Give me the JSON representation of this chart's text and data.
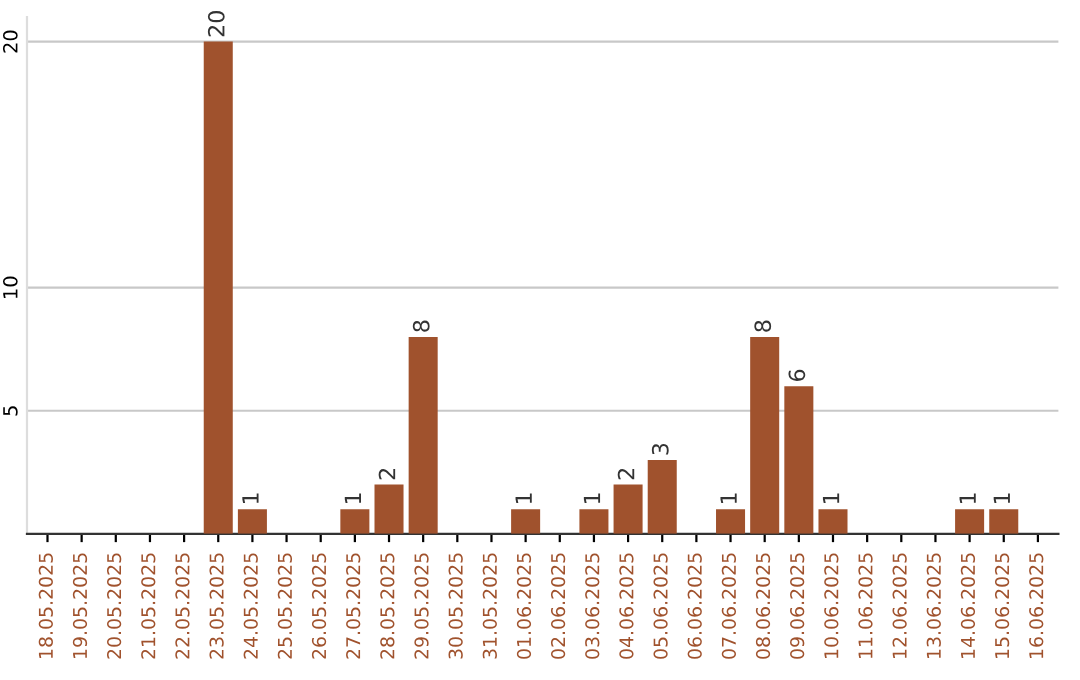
{
  "chart_data": {
    "type": "bar",
    "categories": [
      "18.05.2025",
      "19.05.2025",
      "20.05.2025",
      "21.05.2025",
      "22.05.2025",
      "23.05.2025",
      "24.05.2025",
      "25.05.2025",
      "26.05.2025",
      "27.05.2025",
      "28.05.2025",
      "29.05.2025",
      "30.05.2025",
      "31.05.2025",
      "01.06.2025",
      "02.06.2025",
      "03.06.2025",
      "04.06.2025",
      "05.06.2025",
      "06.06.2025",
      "07.06.2025",
      "08.06.2025",
      "09.06.2025",
      "10.06.2025",
      "11.06.2025",
      "12.06.2025",
      "13.06.2025",
      "14.06.2025",
      "15.06.2025",
      "16.06.2025"
    ],
    "values": [
      0,
      0,
      0,
      0,
      0,
      20,
      1,
      0,
      0,
      1,
      2,
      8,
      0,
      0,
      1,
      0,
      1,
      2,
      3,
      0,
      1,
      8,
      6,
      1,
      0,
      0,
      0,
      1,
      1,
      0
    ],
    "value_labels": [
      null,
      null,
      null,
      null,
      null,
      "20",
      "1",
      null,
      null,
      "1",
      "2",
      "8",
      null,
      null,
      "1",
      null,
      "1",
      "2",
      "3",
      null,
      "1",
      "8",
      "6",
      "1",
      null,
      null,
      null,
      "1",
      "1",
      null
    ],
    "color": "#a0522d",
    "ylim": [
      0,
      21
    ],
    "yticks": [
      5,
      10,
      20
    ],
    "grid": "y"
  }
}
